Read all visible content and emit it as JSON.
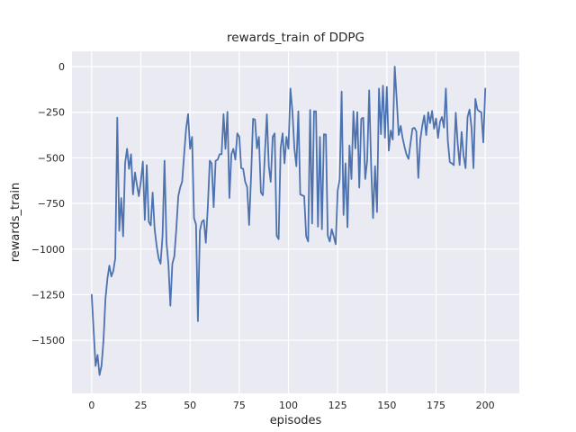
{
  "chart_data": {
    "type": "line",
    "title": "rewards_train of DDPG",
    "xlabel": "episodes",
    "ylabel": "rewards_train",
    "xlim": [
      -10,
      217.3
    ],
    "ylim": [
      -1790,
      84
    ],
    "xticks": [
      0,
      25,
      50,
      75,
      100,
      125,
      150,
      175,
      200
    ],
    "yticks": [
      0,
      -250,
      -500,
      -750,
      -1000,
      -1250,
      -1500
    ],
    "grid": true,
    "legend": false,
    "style": "seaborn-darkgrid",
    "colors": {
      "line": "#4c72b0",
      "plot_background": "#eaeaf2",
      "grid": "#ffffff",
      "figure_background": "#ffffff",
      "text": "#262626"
    },
    "x": [
      0,
      1,
      2,
      3,
      4,
      5,
      6,
      7,
      8,
      9,
      10,
      11,
      12,
      13,
      14,
      15,
      16,
      17,
      18,
      19,
      20,
      21,
      22,
      23,
      24,
      25,
      26,
      27,
      28,
      29,
      30,
      31,
      32,
      33,
      34,
      35,
      36,
      37,
      38,
      39,
      40,
      41,
      42,
      43,
      44,
      45,
      46,
      47,
      48,
      49,
      50,
      51,
      52,
      53,
      54,
      55,
      56,
      57,
      58,
      59,
      60,
      61,
      62,
      63,
      64,
      65,
      66,
      67,
      68,
      69,
      70,
      71,
      72,
      73,
      74,
      75,
      76,
      77,
      78,
      79,
      80,
      81,
      82,
      83,
      84,
      85,
      86,
      87,
      88,
      89,
      90,
      91,
      92,
      93,
      94,
      95,
      96,
      97,
      98,
      99,
      100,
      101,
      102,
      103,
      104,
      105,
      106,
      107,
      108,
      109,
      110,
      111,
      112,
      113,
      114,
      115,
      116,
      117,
      118,
      119,
      120,
      121,
      122,
      123,
      124,
      125,
      126,
      127,
      128,
      129,
      130,
      131,
      132,
      133,
      134,
      135,
      136,
      137,
      138,
      139,
      140,
      141,
      142,
      143,
      144,
      145,
      146,
      147,
      148,
      149,
      150,
      151,
      152,
      153,
      154,
      155,
      156,
      157,
      158,
      159,
      160,
      161,
      162,
      163,
      164,
      165,
      166,
      167,
      168,
      169,
      170,
      171,
      172,
      173,
      174,
      175,
      176,
      177,
      178,
      179,
      180,
      181,
      182,
      183,
      184,
      185,
      186,
      187,
      188,
      189,
      190,
      191,
      192,
      193,
      194,
      195,
      196,
      197,
      198,
      199,
      200
    ],
    "values": [
      -1250,
      -1450,
      -1640,
      -1580,
      -1690,
      -1640,
      -1500,
      -1270,
      -1160,
      -1090,
      -1150,
      -1120,
      -1050,
      -280,
      -900,
      -720,
      -930,
      -530,
      -450,
      -560,
      -480,
      -700,
      -580,
      -650,
      -710,
      -630,
      -520,
      -840,
      -540,
      -850,
      -870,
      -690,
      -890,
      -980,
      -1050,
      -1080,
      -930,
      -515,
      -965,
      -1080,
      -1310,
      -1080,
      -1040,
      -890,
      -710,
      -660,
      -630,
      -480,
      -340,
      -260,
      -450,
      -385,
      -830,
      -865,
      -1395,
      -900,
      -850,
      -840,
      -965,
      -770,
      -515,
      -530,
      -770,
      -515,
      -510,
      -480,
      -480,
      -260,
      -450,
      -248,
      -720,
      -480,
      -450,
      -510,
      -366,
      -385,
      -556,
      -560,
      -630,
      -660,
      -868,
      -600,
      -286,
      -290,
      -448,
      -385,
      -690,
      -705,
      -480,
      -261,
      -546,
      -631,
      -385,
      -366,
      -927,
      -945,
      -448,
      -366,
      -530,
      -385,
      -450,
      -120,
      -245,
      -448,
      -546,
      -245,
      -700,
      -705,
      -710,
      -930,
      -958,
      -237,
      -860,
      -245,
      -245,
      -877,
      -385,
      -891,
      -370,
      -372,
      -927,
      -958,
      -891,
      -930,
      -973,
      -680,
      -616,
      -137,
      -813,
      -530,
      -880,
      -432,
      -616,
      -245,
      -448,
      -250,
      -663,
      -286,
      -280,
      -616,
      -513,
      -130,
      -546,
      -830,
      -546,
      -797,
      -120,
      -370,
      -104,
      -390,
      -112,
      -460,
      -350,
      -400,
      0,
      -180,
      -375,
      -325,
      -390,
      -440,
      -482,
      -506,
      -420,
      -340,
      -335,
      -355,
      -610,
      -400,
      -325,
      -268,
      -375,
      -250,
      -309,
      -243,
      -340,
      -284,
      -391,
      -302,
      -276,
      -334,
      -120,
      -408,
      -523,
      -530,
      -540,
      -253,
      -424,
      -539,
      -358,
      -490,
      -556,
      -276,
      -235,
      -334,
      -556,
      -177,
      -235,
      -245,
      -250,
      -415,
      -120
    ]
  }
}
